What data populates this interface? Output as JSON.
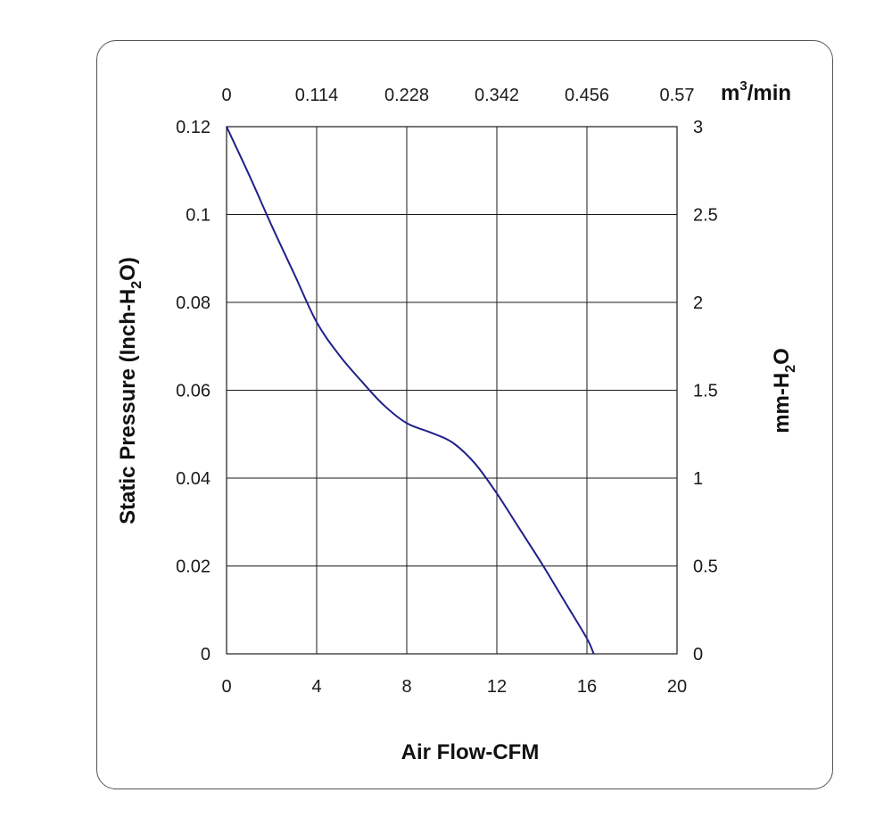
{
  "chart_data": {
    "type": "line",
    "x_bottom": {
      "label": "Air Flow-CFM",
      "range": [
        0,
        20
      ],
      "ticks": [
        "0",
        "4",
        "8",
        "12",
        "16",
        "20"
      ]
    },
    "x_top": {
      "unit_base": "m",
      "unit_sup": "3",
      "unit_rest": "/min",
      "range": [
        0,
        0.57
      ],
      "ticks": [
        "0",
        "0.114",
        "0.228",
        "0.342",
        "0.456",
        "0.57"
      ]
    },
    "y_left": {
      "label_pre": "Static Pressure (Inch-H",
      "label_sub": "2",
      "label_post": "O)",
      "range": [
        0,
        0.12
      ],
      "ticks": [
        "0",
        "0.02",
        "0.04",
        "0.06",
        "0.08",
        "0.1",
        "0.12"
      ]
    },
    "y_right": {
      "label_pre": "mm-H",
      "label_sub": "2",
      "label_post": "O",
      "range": [
        0,
        3
      ],
      "ticks": [
        "0",
        "0.5",
        "1",
        "1.5",
        "2",
        "2.5",
        "3"
      ]
    },
    "grid": true,
    "series": [
      {
        "color": "#1f1f8a",
        "x": [
          0,
          1,
          2,
          3,
          4,
          5,
          6,
          7,
          8,
          9,
          10,
          11,
          12,
          13,
          14,
          15,
          16,
          16.3
        ],
        "y": [
          0.12,
          0.109,
          0.0975,
          0.0865,
          0.0755,
          0.068,
          0.062,
          0.0565,
          0.0525,
          0.0505,
          0.0482,
          0.0435,
          0.0365,
          0.0285,
          0.0205,
          0.012,
          0.0035,
          0
        ]
      }
    ]
  }
}
